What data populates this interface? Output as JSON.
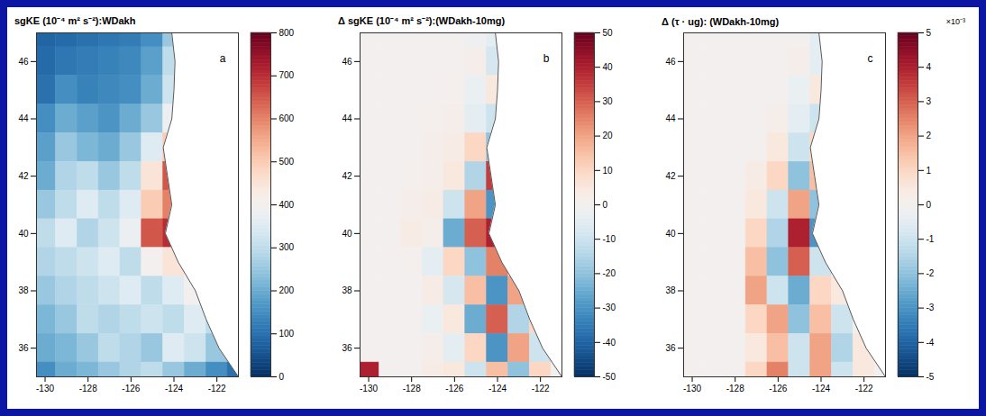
{
  "chart_data": [
    {
      "type": "heatmap",
      "panel": "a",
      "title": "sgKE (10⁻⁴ m² s⁻²):WDakh",
      "x": [
        -130,
        -129,
        -128,
        -127,
        -126,
        -125,
        -124,
        -123,
        -122,
        -121
      ],
      "y": [
        47,
        46,
        45,
        44,
        43,
        42,
        41,
        40,
        39,
        38,
        37,
        36,
        35
      ],
      "values": [
        [
          80,
          90,
          100,
          110,
          120,
          150,
          250,
          null,
          null,
          null
        ],
        [
          90,
          110,
          120,
          130,
          140,
          180,
          300,
          null,
          null,
          null
        ],
        [
          100,
          150,
          130,
          140,
          150,
          200,
          320,
          null,
          null,
          null
        ],
        [
          150,
          200,
          180,
          160,
          200,
          250,
          380,
          null,
          null,
          null
        ],
        [
          180,
          250,
          220,
          200,
          250,
          350,
          500,
          null,
          null,
          null
        ],
        [
          200,
          280,
          300,
          250,
          300,
          450,
          650,
          null,
          null,
          null
        ],
        [
          250,
          300,
          350,
          300,
          350,
          500,
          600,
          null,
          null,
          null
        ],
        [
          300,
          350,
          280,
          320,
          380,
          650,
          700,
          null,
          null,
          null
        ],
        [
          280,
          300,
          320,
          350,
          300,
          400,
          450,
          null,
          null,
          null
        ],
        [
          250,
          280,
          300,
          320,
          350,
          300,
          350,
          400,
          null,
          null
        ],
        [
          220,
          250,
          300,
          280,
          300,
          320,
          300,
          350,
          300,
          null
        ],
        [
          200,
          220,
          250,
          300,
          280,
          250,
          350,
          320,
          250,
          null
        ],
        [
          150,
          200,
          220,
          250,
          280,
          300,
          250,
          200,
          150,
          100
        ]
      ],
      "xlim": [
        -130.4,
        -121
      ],
      "ylim": [
        35,
        47
      ],
      "xticks": [
        -130,
        -128,
        -126,
        -124,
        -122
      ],
      "yticks": [
        36,
        38,
        40,
        42,
        44,
        46
      ],
      "colorbar": {
        "range": [
          0,
          800
        ],
        "ticks": [
          0,
          100,
          200,
          300,
          400,
          500,
          600,
          700,
          800
        ]
      }
    },
    {
      "type": "heatmap",
      "panel": "b",
      "title": "Δ sgKE (10⁻⁴ m² s⁻²):(WDakh-10mg)",
      "x": [
        -130,
        -129,
        -128,
        -127,
        -126,
        -125,
        -124,
        -123,
        -122,
        -121
      ],
      "y": [
        47,
        46,
        45,
        44,
        43,
        42,
        41,
        40,
        39,
        38,
        37,
        36,
        35
      ],
      "values": [
        [
          0,
          0,
          0,
          0,
          0,
          -2,
          -5,
          null,
          null,
          null
        ],
        [
          0,
          0,
          0,
          0,
          0,
          2,
          -8,
          null,
          null,
          null
        ],
        [
          0,
          0,
          0,
          0,
          1,
          -3,
          5,
          null,
          null,
          null
        ],
        [
          0,
          0,
          0,
          1,
          2,
          -5,
          -10,
          null,
          null,
          null
        ],
        [
          0,
          0,
          0,
          2,
          3,
          10,
          -20,
          null,
          null,
          null
        ],
        [
          0,
          0,
          1,
          2,
          5,
          -15,
          35,
          null,
          null,
          null
        ],
        [
          0,
          0,
          2,
          3,
          -10,
          20,
          -30,
          null,
          null,
          null
        ],
        [
          0,
          0,
          3,
          2,
          -25,
          30,
          40,
          null,
          null,
          null
        ],
        [
          0,
          0,
          1,
          -5,
          10,
          -20,
          25,
          null,
          null,
          null
        ],
        [
          0,
          0,
          0,
          3,
          -8,
          15,
          -30,
          20,
          null,
          null
        ],
        [
          0,
          0,
          0,
          -3,
          5,
          -25,
          30,
          -15,
          10,
          null
        ],
        [
          0,
          0,
          0,
          2,
          -5,
          10,
          -30,
          20,
          -10,
          null
        ],
        [
          40,
          0,
          0,
          3,
          5,
          -10,
          15,
          -20,
          10,
          0
        ]
      ],
      "xlim": [
        -130.4,
        -121
      ],
      "ylim": [
        35,
        47
      ],
      "xticks": [
        -130,
        -128,
        -126,
        -124,
        -122
      ],
      "yticks": [
        36,
        38,
        40,
        42,
        44,
        46
      ],
      "colorbar": {
        "range": [
          -50,
          50
        ],
        "ticks": [
          -50,
          -40,
          -30,
          -20,
          -10,
          0,
          10,
          20,
          30,
          40,
          50
        ]
      }
    },
    {
      "type": "heatmap",
      "panel": "c",
      "title": "Δ (τ · ug): (WDakh-10mg)",
      "x": [
        -130,
        -129,
        -128,
        -127,
        -126,
        -125,
        -124,
        -123,
        -122,
        -121
      ],
      "y": [
        47,
        46,
        45,
        44,
        43,
        42,
        41,
        40,
        39,
        38,
        37,
        36,
        35
      ],
      "values": [
        [
          0,
          0,
          0,
          0,
          0,
          0,
          -0.5,
          null,
          null,
          null
        ],
        [
          0,
          0,
          0,
          0,
          0,
          0.2,
          -0.5,
          null,
          null,
          null
        ],
        [
          0,
          0,
          0,
          0,
          0,
          -0.3,
          0.5,
          null,
          null,
          null
        ],
        [
          0,
          0,
          0,
          0,
          0.2,
          -0.5,
          -1,
          null,
          null,
          null
        ],
        [
          0,
          0,
          0,
          0,
          0.5,
          -1,
          1,
          null,
          null,
          null
        ],
        [
          0,
          0,
          0,
          0.3,
          1,
          -2,
          1.5,
          null,
          null,
          null
        ],
        [
          0,
          0,
          0,
          0.5,
          -1,
          2,
          -2,
          null,
          null,
          null
        ],
        [
          0,
          0,
          0,
          1,
          -1.5,
          4,
          -3,
          null,
          null,
          null
        ],
        [
          0,
          0,
          0,
          1.5,
          -2,
          3,
          -1,
          null,
          null,
          null
        ],
        [
          0,
          0,
          0,
          2,
          -1,
          -2.5,
          1,
          0.5,
          null,
          null
        ],
        [
          0,
          0,
          0,
          1,
          2,
          -2,
          1.5,
          -1,
          0,
          null
        ],
        [
          0,
          0,
          0,
          0.5,
          1.5,
          -1,
          2,
          -1.5,
          0.5,
          null
        ],
        [
          0,
          0,
          0,
          1,
          2.5,
          -1,
          2,
          -1,
          0.5,
          0
        ]
      ],
      "xlim": [
        -130.4,
        -121
      ],
      "ylim": [
        35,
        47
      ],
      "xticks": [
        -130,
        -128,
        -126,
        -124,
        -122
      ],
      "yticks": [
        36,
        38,
        40,
        42,
        44,
        46
      ],
      "colorbar": {
        "range": [
          -5,
          5
        ],
        "ticks": [
          -5,
          -4,
          -3,
          -2,
          -1,
          0,
          1,
          2,
          3,
          4,
          5
        ],
        "label": "×10⁻³"
      }
    }
  ],
  "coastline": {
    "lon": [
      -124.1,
      -123.95,
      -124.0,
      -124.1,
      -124.5,
      -124.3,
      -124.1,
      -124.4,
      -123.8,
      -123.0,
      -122.5,
      -121.9,
      -121.0
    ],
    "lat": [
      47,
      46,
      45,
      44,
      43,
      42,
      41,
      40,
      39,
      38,
      37,
      36,
      35
    ]
  }
}
